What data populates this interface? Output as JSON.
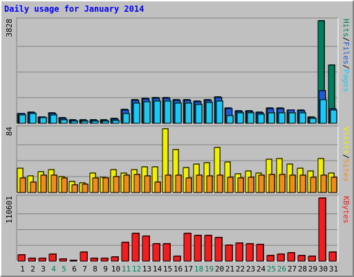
{
  "title": "Daily usage for January 2014",
  "colors": {
    "hits": "#007f5f",
    "files": "#1e5bd9",
    "pages": "#1ec8f0",
    "visits": "#f0f000",
    "sites": "#f08c1e",
    "kbytes": "#f01e1e",
    "weekend_day": "#007f5f",
    "weekday_day": "#000000",
    "plot_bg": "#c0c0c0",
    "grid": "#808080"
  },
  "chart_data": [
    {
      "type": "bar",
      "panel": "top",
      "ymax_label": "3828",
      "ylim": [
        0,
        3828
      ],
      "side_label": {
        "parts": [
          "Pages",
          "/",
          "Files",
          "/",
          "Hits"
        ]
      },
      "categories": [
        "1",
        "2",
        "3",
        "4",
        "5",
        "6",
        "7",
        "8",
        "9",
        "10",
        "11",
        "12",
        "13",
        "14",
        "15",
        "16",
        "17",
        "18",
        "19",
        "20",
        "21",
        "22",
        "23",
        "24",
        "25",
        "26",
        "27",
        "28",
        "29",
        "30",
        "31"
      ],
      "series": [
        {
          "name": "Hits",
          "values": [
            370,
            420,
            240,
            390,
            200,
            120,
            120,
            120,
            120,
            180,
            510,
            880,
            930,
            950,
            950,
            880,
            880,
            820,
            870,
            990,
            570,
            470,
            470,
            410,
            560,
            560,
            500,
            480,
            230,
            3828,
            2180
          ]
        },
        {
          "name": "Files",
          "values": [
            360,
            400,
            230,
            370,
            180,
            100,
            100,
            100,
            100,
            150,
            490,
            860,
            900,
            940,
            940,
            860,
            860,
            790,
            860,
            960,
            550,
            450,
            450,
            390,
            540,
            540,
            480,
            460,
            210,
            1220,
            550
          ]
        },
        {
          "name": "Pages",
          "values": [
            310,
            350,
            200,
            320,
            140,
            70,
            70,
            70,
            80,
            110,
            360,
            740,
            790,
            830,
            830,
            750,
            740,
            690,
            770,
            840,
            280,
            390,
            390,
            330,
            380,
            380,
            400,
            400,
            170,
            870,
            480
          ]
        }
      ]
    },
    {
      "type": "bar",
      "panel": "middle",
      "ymax_label": "84",
      "ylim": [
        0,
        84
      ],
      "side_label": {
        "parts": [
          "Sites",
          "/",
          "Visits"
        ]
      },
      "categories": [
        "1",
        "2",
        "3",
        "4",
        "5",
        "6",
        "7",
        "8",
        "9",
        "10",
        "11",
        "12",
        "13",
        "14",
        "15",
        "16",
        "17",
        "18",
        "19",
        "20",
        "21",
        "22",
        "23",
        "24",
        "25",
        "26",
        "27",
        "28",
        "29",
        "30",
        "31"
      ],
      "series": [
        {
          "name": "Visits",
          "values": [
            32,
            22,
            27,
            30,
            21,
            15,
            13,
            26,
            20,
            30,
            26,
            30,
            34,
            34,
            84,
            57,
            33,
            37,
            39,
            59,
            40,
            25,
            28,
            26,
            44,
            45,
            37,
            32,
            28,
            45,
            26
          ]
        },
        {
          "name": "Sites",
          "values": [
            19,
            14,
            23,
            23,
            19,
            10,
            11,
            19,
            19,
            21,
            23,
            24,
            22,
            14,
            23,
            23,
            19,
            23,
            22,
            23,
            20,
            19,
            20,
            23,
            24,
            24,
            23,
            23,
            20,
            23,
            20
          ]
        }
      ]
    },
    {
      "type": "bar",
      "panel": "bottom",
      "ymax_label": "110601",
      "ylim": [
        0,
        110601
      ],
      "side_label": {
        "parts": [
          "KBytes"
        ]
      },
      "categories": [
        "1",
        "2",
        "3",
        "4",
        "5",
        "6",
        "7",
        "8",
        "9",
        "10",
        "11",
        "12",
        "13",
        "14",
        "15",
        "16",
        "17",
        "18",
        "19",
        "20",
        "21",
        "22",
        "23",
        "24",
        "25",
        "26",
        "27",
        "28",
        "29",
        "30",
        "31"
      ],
      "series": [
        {
          "name": "KBytes",
          "values": [
            11500,
            5000,
            4500,
            12000,
            3500,
            800,
            16000,
            5000,
            5000,
            7000,
            33000,
            49000,
            44000,
            30000,
            30000,
            8000,
            49000,
            45000,
            45000,
            41000,
            28000,
            32000,
            30000,
            29000,
            10000,
            12000,
            15000,
            10000,
            8000,
            110601,
            16000
          ]
        }
      ]
    }
  ],
  "x_axis": {
    "days": [
      "1",
      "2",
      "3",
      "4",
      "5",
      "6",
      "7",
      "8",
      "9",
      "10",
      "11",
      "12",
      "13",
      "14",
      "15",
      "16",
      "17",
      "18",
      "19",
      "20",
      "21",
      "22",
      "23",
      "24",
      "25",
      "26",
      "27",
      "28",
      "29",
      "30",
      "31"
    ],
    "weekend": [
      false,
      false,
      false,
      true,
      true,
      false,
      false,
      false,
      false,
      false,
      true,
      true,
      false,
      false,
      false,
      false,
      false,
      true,
      true,
      false,
      false,
      false,
      false,
      false,
      true,
      true,
      false,
      false,
      false,
      false,
      false
    ]
  }
}
